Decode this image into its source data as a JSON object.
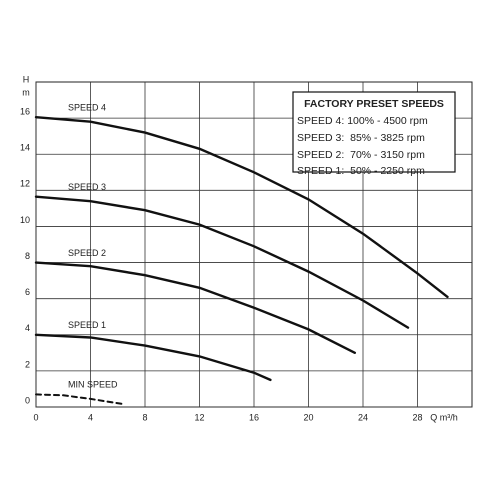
{
  "chart_data": {
    "type": "line",
    "y_axis_label": "H",
    "y_axis_unit": "m",
    "x_axis_label": "Q m³/h",
    "xlim": [
      0,
      32
    ],
    "xticks": [
      0,
      4,
      8,
      12,
      16,
      20,
      24,
      28
    ],
    "ylim": [
      0,
      18
    ],
    "yticks": [
      0,
      2,
      4,
      6,
      8,
      10,
      12,
      14,
      16
    ],
    "grid": true,
    "series": [
      {
        "name": "SPEED 4",
        "color": "#111111",
        "dashed": false,
        "x": [
          0,
          4,
          8,
          12,
          16,
          20,
          24,
          28,
          30.2
        ],
        "values": [
          16.05,
          15.8,
          15.2,
          14.3,
          13.0,
          11.5,
          9.6,
          7.4,
          6.1
        ]
      },
      {
        "name": "SPEED 3",
        "color": "#111111",
        "dashed": false,
        "x": [
          0,
          4,
          8,
          12,
          16,
          20,
          24,
          27.3
        ],
        "values": [
          11.65,
          11.4,
          10.9,
          10.1,
          8.9,
          7.5,
          5.9,
          4.4
        ]
      },
      {
        "name": "SPEED 2",
        "color": "#111111",
        "dashed": false,
        "x": [
          0,
          4,
          8,
          12,
          16,
          20,
          23.4
        ],
        "values": [
          8.0,
          7.8,
          7.3,
          6.6,
          5.5,
          4.3,
          3.0
        ]
      },
      {
        "name": "SPEED 1",
        "color": "#111111",
        "dashed": false,
        "x": [
          0,
          4,
          8,
          12,
          16,
          17.2
        ],
        "values": [
          4.0,
          3.85,
          3.4,
          2.8,
          1.9,
          1.5
        ]
      },
      {
        "name": "MIN SPEED",
        "color": "#111111",
        "dashed": true,
        "x": [
          0,
          2,
          4,
          6.5
        ],
        "values": [
          0.7,
          0.65,
          0.45,
          0.15
        ]
      }
    ],
    "legend_box": {
      "title": "FACTORY PRESET SPEEDS",
      "lines": [
        "SPEED 4: 100% - 4500 rpm",
        "SPEED 3:  85% - 3825 rpm",
        "SPEED 2:  70% - 3150 rpm",
        "SPEED 1:  50% - 2250 rpm"
      ]
    }
  }
}
